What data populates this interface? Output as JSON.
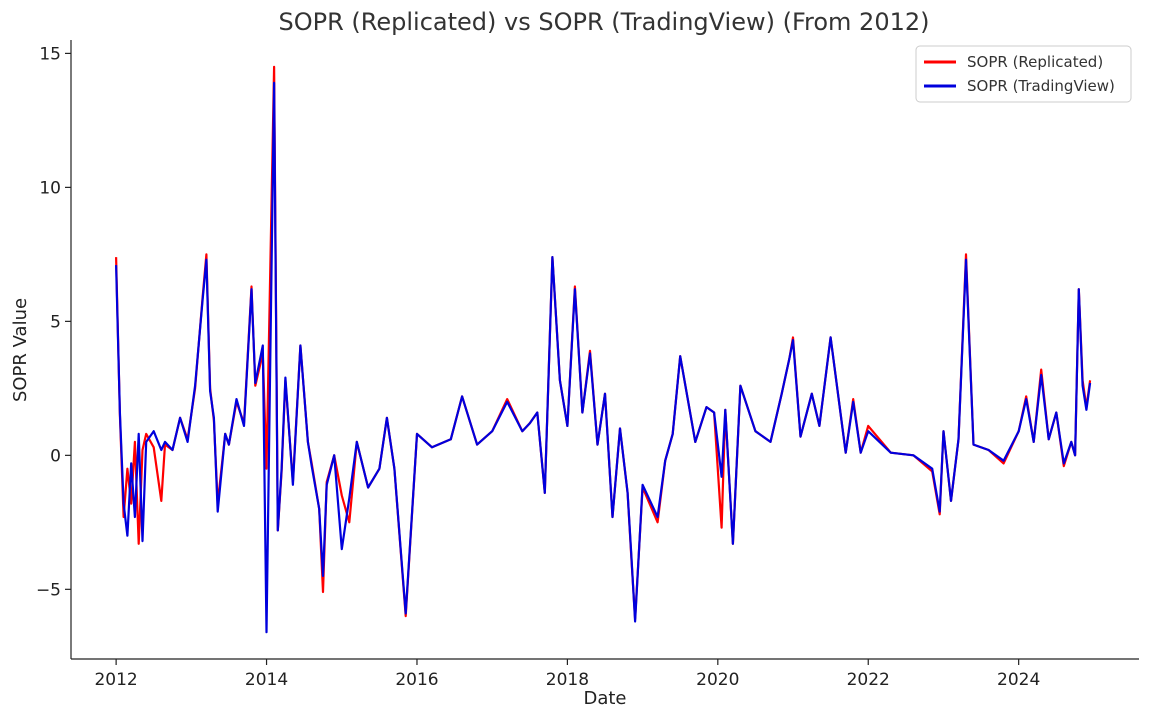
{
  "chart_data": {
    "type": "line",
    "title": "SOPR (Replicated) vs SOPR (TradingView) (From 2012)",
    "xlabel": "Date",
    "ylabel": "SOPR Value",
    "xlim": [
      2011.4,
      2025.6
    ],
    "ylim": [
      -7.6,
      15.5
    ],
    "x_ticks": [
      2012,
      2014,
      2016,
      2018,
      2020,
      2022,
      2024
    ],
    "x_tick_labels": [
      "2012",
      "2014",
      "2016",
      "2018",
      "2020",
      "2022",
      "2024"
    ],
    "y_ticks": [
      -5,
      0,
      5,
      10,
      15
    ],
    "y_tick_labels": [
      "−5",
      "0",
      "5",
      "10",
      "15"
    ],
    "grid": false,
    "legend_position": "top-right",
    "x": [
      2012.0,
      2012.05,
      2012.1,
      2012.15,
      2012.2,
      2012.25,
      2012.3,
      2012.35,
      2012.4,
      2012.5,
      2012.6,
      2012.65,
      2012.75,
      2012.85,
      2012.95,
      2013.05,
      2013.15,
      2013.2,
      2013.25,
      2013.3,
      2013.35,
      2013.45,
      2013.5,
      2013.6,
      2013.7,
      2013.8,
      2013.85,
      2013.95,
      2014.0,
      2014.1,
      2014.15,
      2014.2,
      2014.25,
      2014.35,
      2014.45,
      2014.55,
      2014.6,
      2014.7,
      2014.75,
      2014.8,
      2014.9,
      2015.0,
      2015.1,
      2015.2,
      2015.35,
      2015.5,
      2015.6,
      2015.7,
      2015.85,
      2016.0,
      2016.2,
      2016.45,
      2016.6,
      2016.8,
      2017.0,
      2017.2,
      2017.4,
      2017.5,
      2017.6,
      2017.7,
      2017.8,
      2017.9,
      2018.0,
      2018.1,
      2018.2,
      2018.3,
      2018.4,
      2018.5,
      2018.6,
      2018.7,
      2018.8,
      2018.85,
      2018.9,
      2019.0,
      2019.2,
      2019.3,
      2019.4,
      2019.5,
      2019.7,
      2019.85,
      2019.95,
      2020.05,
      2020.1,
      2020.2,
      2020.3,
      2020.5,
      2020.7,
      2020.85,
      2020.95,
      2021.0,
      2021.1,
      2021.25,
      2021.35,
      2021.5,
      2021.7,
      2021.8,
      2021.9,
      2022.0,
      2022.3,
      2022.6,
      2022.85,
      2022.95,
      2023.0,
      2023.1,
      2023.2,
      2023.3,
      2023.4,
      2023.6,
      2023.8,
      2024.0,
      2024.1,
      2024.2,
      2024.3,
      2024.4,
      2024.5,
      2024.6,
      2024.7,
      2024.75,
      2024.8,
      2024.85,
      2024.9,
      2024.95
    ],
    "series": [
      {
        "name": "SOPR (Replicated)",
        "color": "#ff0000",
        "values": [
          7.4,
          1.5,
          -2.3,
          -0.5,
          -1.8,
          0.5,
          -3.3,
          0.2,
          0.8,
          0.3,
          -1.7,
          0.4,
          0.2,
          1.4,
          0.6,
          2.5,
          5.9,
          7.5,
          2.5,
          1.3,
          -1.8,
          0.8,
          0.4,
          2.0,
          1.2,
          6.3,
          2.6,
          3.8,
          -0.5,
          14.5,
          -2.8,
          -0.6,
          2.8,
          -1.0,
          4.1,
          0.5,
          -0.3,
          -2.0,
          -5.1,
          -1.0,
          0.0,
          -1.5,
          -2.5,
          0.5,
          -1.2,
          -0.5,
          1.4,
          -0.5,
          -6.0,
          0.8,
          0.3,
          0.6,
          2.2,
          0.4,
          0.9,
          2.1,
          0.9,
          1.2,
          1.6,
          -1.4,
          7.4,
          2.8,
          1.1,
          6.3,
          1.6,
          3.9,
          0.4,
          2.3,
          -2.3,
          1.0,
          -1.4,
          -3.8,
          -6.1,
          -1.2,
          -2.5,
          -0.2,
          0.8,
          3.7,
          0.5,
          1.8,
          1.6,
          -2.7,
          1.7,
          -3.3,
          2.6,
          0.9,
          0.5,
          2.3,
          3.6,
          4.4,
          0.7,
          2.3,
          1.1,
          4.4,
          0.1,
          2.1,
          0.1,
          1.1,
          0.1,
          0.0,
          -0.6,
          -2.2,
          0.9,
          -1.7,
          0.6,
          7.5,
          0.4,
          0.2,
          -0.3,
          0.9,
          2.2,
          0.5,
          3.2,
          0.6,
          1.6,
          -0.4,
          0.5,
          0.0,
          6.2,
          2.8,
          1.8,
          2.8
        ]
      },
      {
        "name": "SOPR (TradingView)",
        "color": "#0000dd",
        "values": [
          7.1,
          1.6,
          -1.8,
          -3.0,
          -0.3,
          -2.3,
          0.8,
          -3.2,
          0.5,
          0.9,
          0.2,
          0.5,
          0.2,
          1.4,
          0.5,
          2.6,
          5.8,
          7.3,
          2.4,
          1.4,
          -2.1,
          0.8,
          0.4,
          2.1,
          1.1,
          6.2,
          2.7,
          4.1,
          -6.6,
          13.9,
          -2.8,
          -0.5,
          2.9,
          -1.1,
          4.1,
          0.5,
          -0.4,
          -2.0,
          -4.5,
          -1.1,
          0.0,
          -3.5,
          -1.6,
          0.5,
          -1.2,
          -0.5,
          1.4,
          -0.5,
          -5.9,
          0.8,
          0.3,
          0.6,
          2.2,
          0.4,
          0.9,
          2.0,
          0.9,
          1.2,
          1.6,
          -1.4,
          7.4,
          2.8,
          1.1,
          6.2,
          1.6,
          3.8,
          0.4,
          2.3,
          -2.3,
          1.0,
          -1.4,
          -3.7,
          -6.2,
          -1.1,
          -2.3,
          -0.2,
          0.8,
          3.7,
          0.5,
          1.8,
          1.6,
          -0.8,
          1.7,
          -3.3,
          2.6,
          0.9,
          0.5,
          2.3,
          3.6,
          4.3,
          0.7,
          2.3,
          1.1,
          4.4,
          0.1,
          2.0,
          0.1,
          0.9,
          0.1,
          0.0,
          -0.5,
          -2.1,
          0.9,
          -1.7,
          0.6,
          7.3,
          0.4,
          0.2,
          -0.2,
          0.9,
          2.1,
          0.5,
          3.0,
          0.6,
          1.6,
          -0.3,
          0.5,
          0.0,
          6.2,
          2.6,
          1.7,
          2.7
        ]
      }
    ]
  }
}
